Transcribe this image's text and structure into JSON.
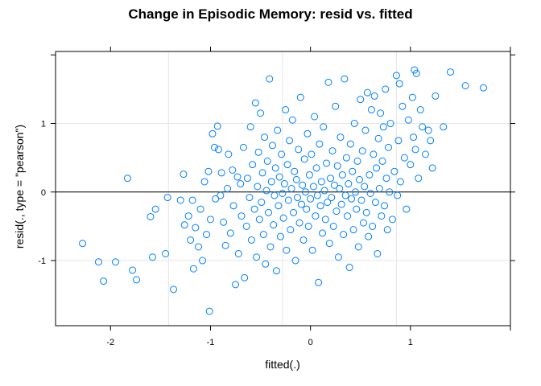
{
  "chart_data": {
    "type": "scatter",
    "title": "Change in Episodic Memory: resid vs. fitted",
    "xlabel": "fitted(.)",
    "ylabel": "resid(., type = \"pearson\")",
    "xlim": [
      -2.55,
      2.0
    ],
    "ylim": [
      -1.95,
      2.05
    ],
    "x_ticks": [
      -2,
      -1,
      0,
      1
    ],
    "y_ticks": [
      -1,
      0,
      1
    ],
    "x_tick_labels": [
      "-2",
      "-1",
      "0",
      "1"
    ],
    "y_tick_labels": [
      "-1",
      "0",
      "1"
    ],
    "x_grid": [
      -1.42,
      -0.28,
      0.86
    ],
    "y_grid": [
      -1,
      0,
      1
    ],
    "reference_line_y": 0,
    "grid": true,
    "marker_color": "#0080ff",
    "points": [
      [
        -2.28,
        -0.75
      ],
      [
        -2.12,
        -1.02
      ],
      [
        -2.07,
        -1.3
      ],
      [
        -1.95,
        -1.02
      ],
      [
        -1.83,
        0.2
      ],
      [
        -1.78,
        -1.14
      ],
      [
        -1.74,
        -1.28
      ],
      [
        -1.6,
        -0.36
      ],
      [
        -1.58,
        -0.95
      ],
      [
        -1.55,
        -0.25
      ],
      [
        -1.45,
        -0.9
      ],
      [
        -1.43,
        -0.08
      ],
      [
        -1.37,
        -1.42
      ],
      [
        -1.3,
        -0.12
      ],
      [
        -1.27,
        0.26
      ],
      [
        -1.26,
        -0.48
      ],
      [
        -1.22,
        -0.35
      ],
      [
        -1.2,
        -0.7
      ],
      [
        -1.18,
        -0.12
      ],
      [
        -1.17,
        -1.12
      ],
      [
        -1.15,
        -0.52
      ],
      [
        -1.12,
        -0.8
      ],
      [
        -1.1,
        -0.25
      ],
      [
        -1.08,
        -1.0
      ],
      [
        -1.06,
        0.15
      ],
      [
        -1.04,
        -0.62
      ],
      [
        -1.02,
        0.3
      ],
      [
        -1.01,
        -1.74
      ],
      [
        -1.0,
        -0.4
      ],
      [
        -0.98,
        0.85
      ],
      [
        -0.96,
        0.65
      ],
      [
        -0.95,
        -0.1
      ],
      [
        -0.93,
        0.96
      ],
      [
        -0.92,
        0.62
      ],
      [
        -0.9,
        -0.05
      ],
      [
        -0.89,
        0.28
      ],
      [
        -0.87,
        -0.44
      ],
      [
        -0.85,
        -0.78
      ],
      [
        -0.83,
        0.05
      ],
      [
        -0.82,
        0.55
      ],
      [
        -0.8,
        -0.6
      ],
      [
        -0.78,
        0.32
      ],
      [
        -0.77,
        -0.2
      ],
      [
        -0.75,
        -1.35
      ],
      [
        -0.73,
        0.22
      ],
      [
        -0.72,
        -0.9
      ],
      [
        -0.7,
        0.12
      ],
      [
        -0.69,
        -0.35
      ],
      [
        -0.67,
        0.65
      ],
      [
        -0.66,
        -1.25
      ],
      [
        -0.64,
        -0.5
      ],
      [
        -0.63,
        0.2
      ],
      [
        -0.61,
        -0.08
      ],
      [
        -0.6,
        0.95
      ],
      [
        -0.59,
        -0.7
      ],
      [
        -0.58,
        0.4
      ],
      [
        -0.56,
        -0.25
      ],
      [
        -0.55,
        1.3
      ],
      [
        -0.54,
        -0.95
      ],
      [
        -0.53,
        0.08
      ],
      [
        -0.52,
        0.58
      ],
      [
        -0.51,
        -0.4
      ],
      [
        -0.5,
        1.15
      ],
      [
        -0.49,
        -0.15
      ],
      [
        -0.48,
        0.28
      ],
      [
        -0.47,
        -0.62
      ],
      [
        -0.46,
        0.8
      ],
      [
        -0.45,
        -1.05
      ],
      [
        -0.44,
        0.02
      ],
      [
        -0.43,
        0.45
      ],
      [
        -0.42,
        -0.3
      ],
      [
        -0.41,
        1.65
      ],
      [
        -0.4,
        -0.8
      ],
      [
        -0.39,
        0.15
      ],
      [
        -0.38,
        0.68
      ],
      [
        -0.37,
        -0.48
      ],
      [
        -0.36,
        -0.05
      ],
      [
        -0.35,
        0.35
      ],
      [
        -0.34,
        -1.15
      ],
      [
        -0.33,
        0.9
      ],
      [
        -0.32,
        -0.2
      ],
      [
        -0.31,
        0.22
      ],
      [
        -0.3,
        -0.65
      ],
      [
        -0.29,
        0.55
      ],
      [
        -0.28,
        -0.02
      ],
      [
        -0.27,
        -0.38
      ],
      [
        -0.26,
        0.12
      ],
      [
        -0.25,
        1.2
      ],
      [
        -0.24,
        -0.85
      ],
      [
        -0.23,
        0.4
      ],
      [
        -0.22,
        -0.12
      ],
      [
        -0.21,
        0.75
      ],
      [
        -0.2,
        -0.55
      ],
      [
        -0.19,
        0.05
      ],
      [
        -0.18,
        1.05
      ],
      [
        -0.17,
        -0.3
      ],
      [
        -0.16,
        0.3
      ],
      [
        -0.15,
        -1.0
      ],
      [
        -0.14,
        0.18
      ],
      [
        -0.13,
        -0.08
      ],
      [
        -0.12,
        0.62
      ],
      [
        -0.11,
        -0.45
      ],
      [
        -0.1,
        1.38
      ],
      [
        -0.09,
        -0.18
      ],
      [
        -0.08,
        0.1
      ],
      [
        -0.07,
        -0.7
      ],
      [
        -0.06,
        0.48
      ],
      [
        -0.05,
        0.0
      ],
      [
        -0.04,
        -0.25
      ],
      [
        -0.03,
        0.85
      ],
      [
        -0.02,
        -0.5
      ],
      [
        -0.01,
        0.25
      ],
      [
        0.0,
        -0.1
      ],
      [
        0.01,
        0.55
      ],
      [
        0.02,
        -0.85
      ],
      [
        0.03,
        0.08
      ],
      [
        0.04,
        1.1
      ],
      [
        0.05,
        -0.35
      ],
      [
        0.06,
        0.35
      ],
      [
        0.07,
        -0.05
      ],
      [
        0.08,
        -1.32
      ],
      [
        0.09,
        0.7
      ],
      [
        0.1,
        -0.2
      ],
      [
        0.11,
        0.15
      ],
      [
        0.12,
        -0.6
      ],
      [
        0.13,
        0.95
      ],
      [
        0.14,
        0.02
      ],
      [
        0.15,
        -0.4
      ],
      [
        0.16,
        0.42
      ],
      [
        0.17,
        -0.15
      ],
      [
        0.18,
        1.6
      ],
      [
        0.19,
        -0.75
      ],
      [
        0.2,
        0.2
      ],
      [
        0.21,
        -0.08
      ],
      [
        0.22,
        0.6
      ],
      [
        0.23,
        -0.5
      ],
      [
        0.24,
        0.1
      ],
      [
        0.25,
        1.25
      ],
      [
        0.26,
        -0.28
      ],
      [
        0.27,
        0.38
      ],
      [
        0.28,
        -0.95
      ],
      [
        0.29,
        0.05
      ],
      [
        0.3,
        0.8
      ],
      [
        0.31,
        -0.18
      ],
      [
        0.32,
        0.25
      ],
      [
        0.33,
        -0.62
      ],
      [
        0.34,
        1.65
      ],
      [
        0.35,
        -0.05
      ],
      [
        0.36,
        0.5
      ],
      [
        0.37,
        -0.35
      ],
      [
        0.38,
        0.12
      ],
      [
        0.39,
        -1.1
      ],
      [
        0.4,
        0.7
      ],
      [
        0.41,
        -0.1
      ],
      [
        0.42,
        0.3
      ],
      [
        0.43,
        -0.55
      ],
      [
        0.44,
        1.0
      ],
      [
        0.45,
        0.0
      ],
      [
        0.46,
        -0.25
      ],
      [
        0.47,
        0.45
      ],
      [
        0.48,
        -0.8
      ],
      [
        0.49,
        0.18
      ],
      [
        0.5,
        1.35
      ],
      [
        0.51,
        -0.12
      ],
      [
        0.52,
        0.6
      ],
      [
        0.53,
        -0.45
      ],
      [
        0.54,
        0.08
      ],
      [
        0.55,
        0.9
      ],
      [
        0.56,
        -0.3
      ],
      [
        0.57,
        1.45
      ],
      [
        0.58,
        -0.65
      ],
      [
        0.59,
        0.25
      ],
      [
        0.6,
        -0.02
      ],
      [
        0.61,
        1.2
      ],
      [
        0.62,
        -0.5
      ],
      [
        0.63,
        0.55
      ],
      [
        0.64,
        1.4
      ],
      [
        0.65,
        -0.15
      ],
      [
        0.66,
        0.35
      ],
      [
        0.67,
        -0.9
      ],
      [
        0.68,
        0.78
      ],
      [
        0.69,
        0.05
      ],
      [
        0.7,
        1.15
      ],
      [
        0.71,
        -0.35
      ],
      [
        0.72,
        0.45
      ],
      [
        0.73,
        0.95
      ],
      [
        0.74,
        -0.2
      ],
      [
        0.75,
        1.5
      ],
      [
        0.76,
        0.2
      ],
      [
        0.77,
        -0.55
      ],
      [
        0.78,
        0.65
      ],
      [
        0.79,
        0.0
      ],
      [
        0.8,
        1.0
      ],
      [
        0.82,
        -0.4
      ],
      [
        0.84,
        0.3
      ],
      [
        0.86,
        1.7
      ],
      [
        0.87,
        -0.05
      ],
      [
        0.88,
        0.75
      ],
      [
        0.89,
        1.58
      ],
      [
        0.9,
        0.15
      ],
      [
        0.92,
        1.25
      ],
      [
        0.94,
        0.5
      ],
      [
        0.96,
        -0.25
      ],
      [
        0.98,
        1.05
      ],
      [
        1.0,
        0.4
      ],
      [
        1.02,
        1.38
      ],
      [
        1.03,
        0.8
      ],
      [
        1.04,
        1.78
      ],
      [
        1.05,
        0.62
      ],
      [
        1.06,
        1.73
      ],
      [
        1.08,
        0.2
      ],
      [
        1.1,
        1.2
      ],
      [
        1.12,
        0.95
      ],
      [
        1.15,
        0.55
      ],
      [
        1.18,
        0.9
      ],
      [
        1.2,
        0.75
      ],
      [
        1.22,
        0.35
      ],
      [
        1.25,
        1.4
      ],
      [
        1.33,
        0.95
      ],
      [
        1.4,
        1.75
      ],
      [
        1.55,
        1.55
      ],
      [
        1.73,
        1.52
      ]
    ]
  }
}
